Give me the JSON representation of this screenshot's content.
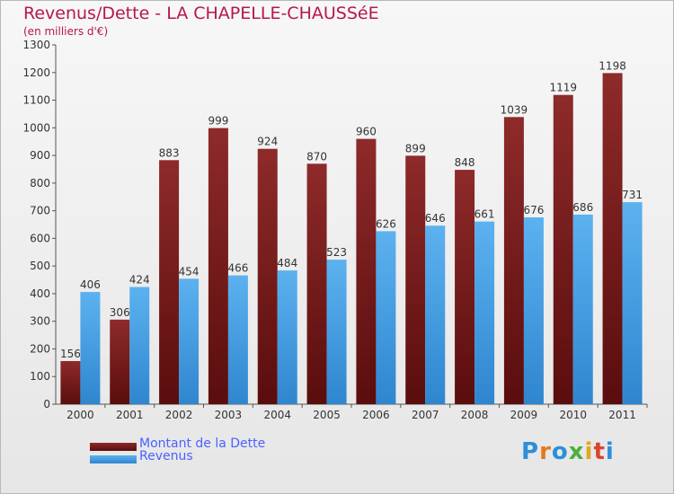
{
  "title": "Revenus/Dette - LA CHAPELLE-CHAUSSéE",
  "subtitle": "(en milliers d'€)",
  "logo": "Proxiti",
  "colors": {
    "dette": "#7a1f1f",
    "revenus": "#4aa3e6",
    "title": "#b5174f",
    "legend_text": "#4a62ff"
  },
  "chart_data": {
    "type": "bar",
    "categories": [
      "2000",
      "2001",
      "2002",
      "2003",
      "2004",
      "2005",
      "2006",
      "2007",
      "2008",
      "2009",
      "2010",
      "2011"
    ],
    "series": [
      {
        "name": "Montant de la Dette",
        "values": [
          156,
          306,
          883,
          999,
          924,
          870,
          960,
          899,
          848,
          1039,
          1119,
          1198
        ]
      },
      {
        "name": "Revenus",
        "values": [
          406,
          424,
          454,
          466,
          484,
          523,
          626,
          646,
          661,
          676,
          686,
          731
        ]
      }
    ],
    "ylim": [
      0,
      1300
    ],
    "yticks": [
      0,
      100,
      200,
      300,
      400,
      500,
      600,
      700,
      800,
      900,
      1000,
      1100,
      1200,
      1300
    ],
    "grid": false,
    "legend_position": "bottom-left"
  }
}
